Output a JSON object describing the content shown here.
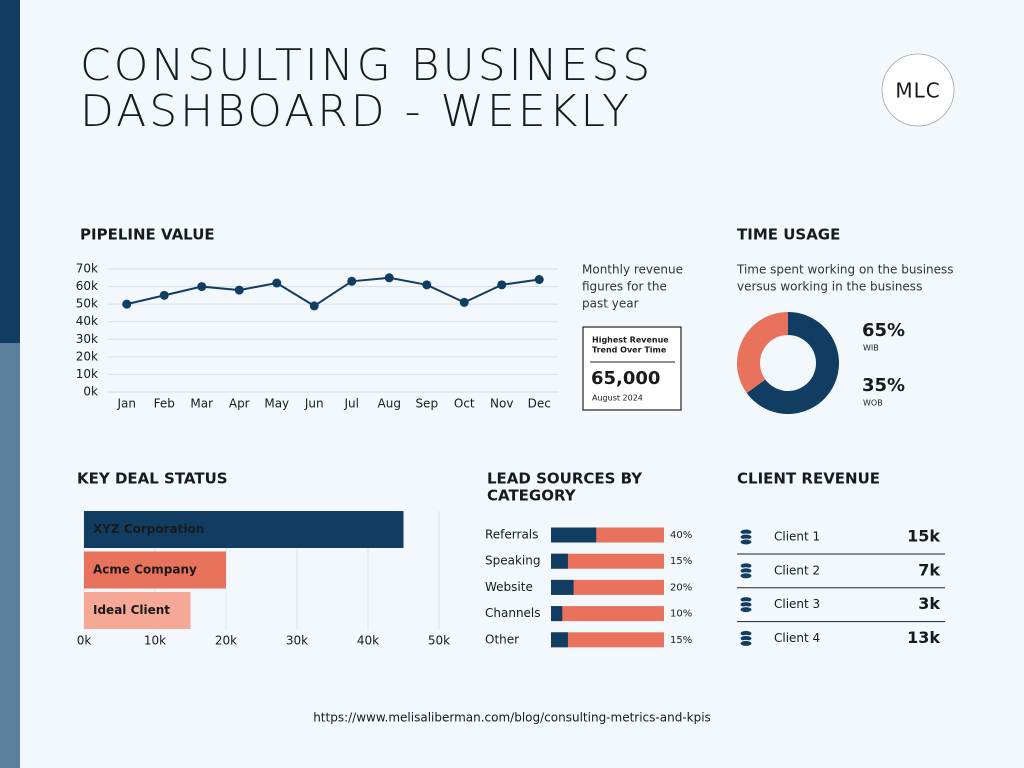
{
  "header": {
    "title": [
      "CONSULTING BUSINESS",
      "DASHBOARD - WEEKLY"
    ],
    "logo": "MLC"
  },
  "chart_data": [
    {
      "type": "line",
      "title": "PIPELINE VALUE",
      "categories": [
        "Jan",
        "Feb",
        "Mar",
        "Apr",
        "May",
        "Jun",
        "Jul",
        "Aug",
        "Sep",
        "Oct",
        "Nov",
        "Dec"
      ],
      "series": [
        {
          "color": "#123d63",
          "values": [
            50000,
            55000,
            60000,
            58000,
            62000,
            49000,
            63000,
            65000,
            61000,
            51000,
            61000,
            64000
          ]
        }
      ],
      "ylim": [
        0,
        70000
      ],
      "yticks": [
        {
          "value": 0,
          "label": "0k"
        },
        {
          "value": 10000,
          "label": "10k"
        },
        {
          "value": 20000,
          "label": "20k"
        },
        {
          "value": 30000,
          "label": "30k"
        },
        {
          "value": 40000,
          "label": "40k"
        },
        {
          "value": 50000,
          "label": "50k"
        },
        {
          "value": 60000,
          "label": "60k"
        },
        {
          "value": 70000,
          "label": "70k"
        }
      ],
      "grid": true,
      "note": [
        "Monthly revenue",
        "figures for the",
        "past year"
      ],
      "highlight": {
        "heading": [
          "Highest Revenue",
          "Trend Over Time"
        ],
        "value": "65,000",
        "date": "August 2024"
      }
    },
    {
      "type": "donut",
      "title": "TIME USAGE",
      "subtitle": [
        "Time spent working on the business",
        "versus working in the business"
      ],
      "categories": [
        "WIB",
        "WOB"
      ],
      "values": [
        65,
        35
      ],
      "value_labels": [
        "65%",
        "35%"
      ],
      "colors": [
        "#123d63",
        "#e8725c"
      ]
    },
    {
      "type": "hbar",
      "title": "KEY DEAL STATUS",
      "categories": [
        "XYZ Corporation",
        "Acme Company",
        "Ideal Client"
      ],
      "values": [
        45000,
        20000,
        15000
      ],
      "colors": [
        "#123d63",
        "#e8725c",
        "#f6a896"
      ],
      "xlim": [
        0,
        50000
      ],
      "xticks": [
        {
          "value": 0,
          "label": "0k"
        },
        {
          "value": 10000,
          "label": "10k"
        },
        {
          "value": 20000,
          "label": "20k"
        },
        {
          "value": 30000,
          "label": "30k"
        },
        {
          "value": 40000,
          "label": "40k"
        },
        {
          "value": 50000,
          "label": "50k"
        }
      ],
      "grid": true
    },
    {
      "type": "share",
      "title": [
        "LEAD SOURCES BY",
        "CATEGORY"
      ],
      "categories": [
        "Referrals",
        "Speaking",
        "Website",
        "Channels",
        "Other"
      ],
      "values": [
        40,
        15,
        20,
        10,
        15
      ],
      "value_labels": [
        "40%",
        "15%",
        "20%",
        "10%",
        "15%"
      ],
      "xlim": [
        0,
        100
      ],
      "color": "#123d63",
      "track_color": "#e8725c"
    }
  ],
  "client_revenue": {
    "title": "CLIENT REVENUE",
    "rows": [
      [
        "Client 1",
        "15k"
      ],
      [
        "Client 2",
        "7k"
      ],
      [
        "Client 3",
        "3k"
      ],
      [
        "Client 4",
        "13k"
      ]
    ]
  },
  "footer": "https://www.melisaliberman.com/blog/consulting-metrics-and-kpis"
}
